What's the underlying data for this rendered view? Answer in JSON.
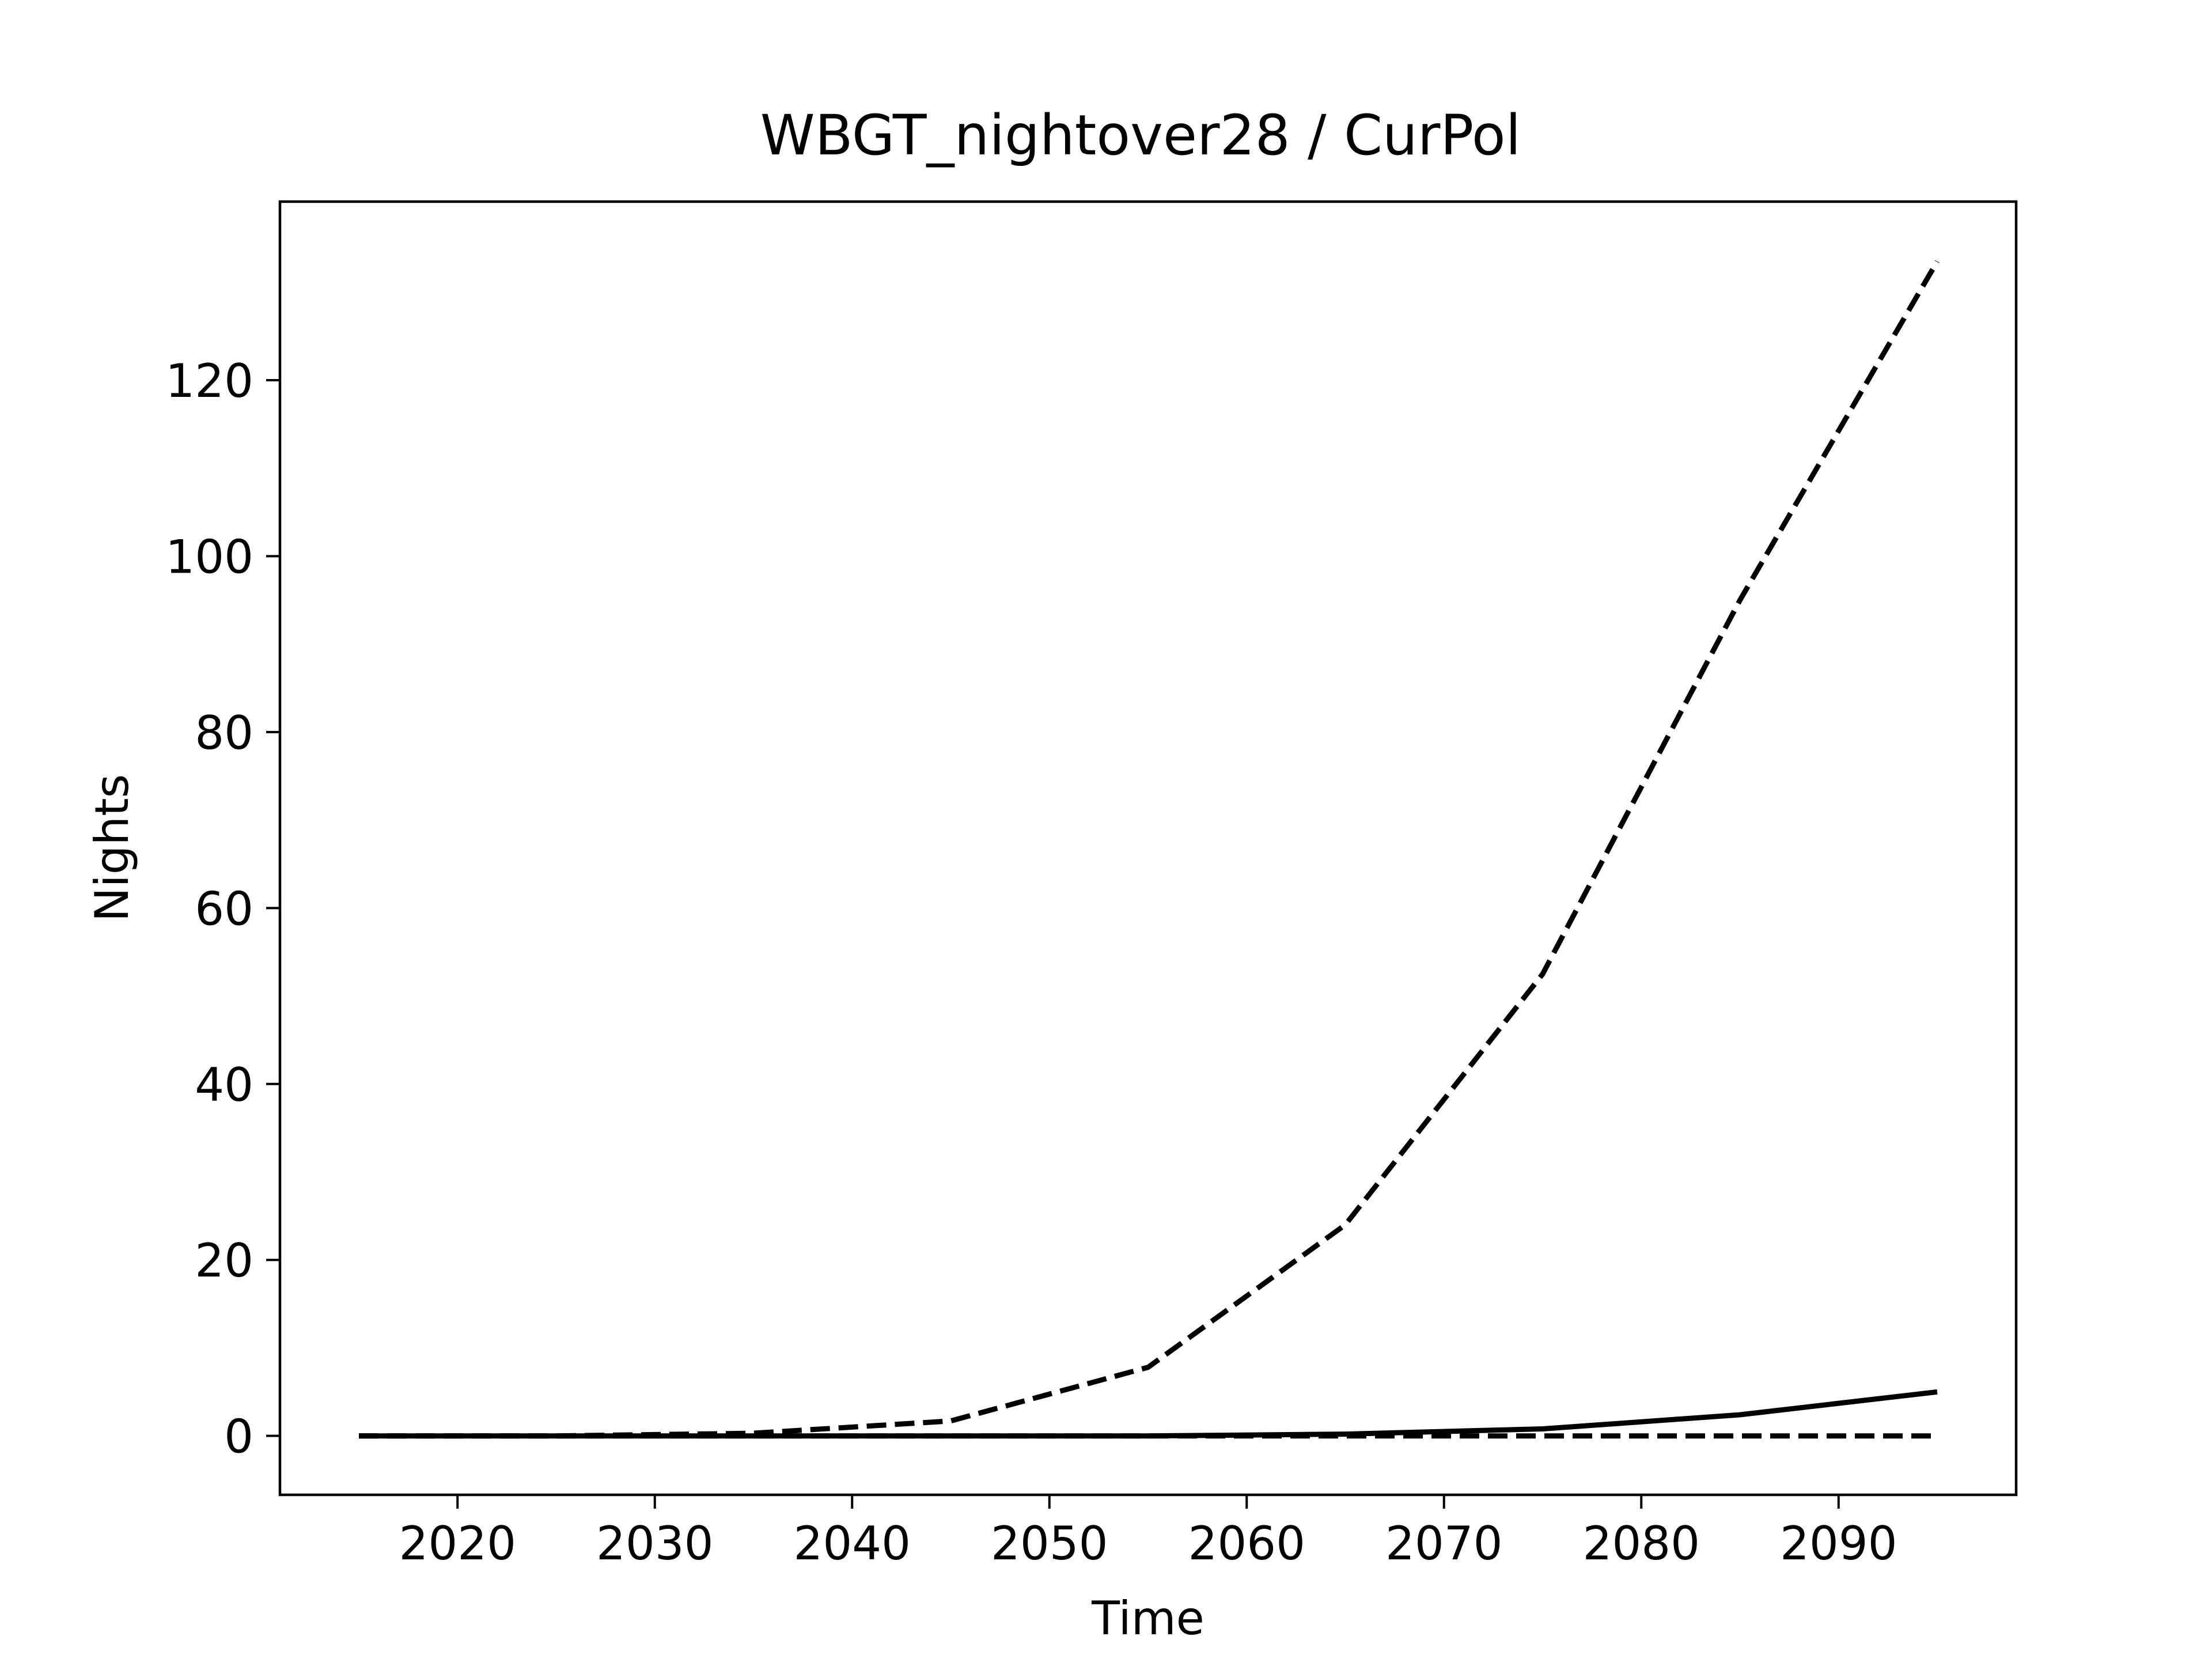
{
  "chart_data": {
    "type": "line",
    "title": "WBGT_nightover28 / CurPol",
    "xlabel": "Time",
    "ylabel": "Nights",
    "xlim": [
      2011,
      2099
    ],
    "ylim": [
      -6.7,
      140.3
    ],
    "x_ticks": [
      2020,
      2030,
      2040,
      2050,
      2060,
      2070,
      2080,
      2090
    ],
    "y_ticks": [
      0,
      20,
      40,
      60,
      80,
      100,
      120
    ],
    "grid": false,
    "legend": "none",
    "x": [
      2015,
      2025,
      2035,
      2045,
      2055,
      2065,
      2075,
      2085,
      2095
    ],
    "series": [
      {
        "style": "dashed",
        "color": "#000000",
        "values": [
          0,
          0,
          0.3,
          1.7,
          7.8,
          24,
          52.5,
          95,
          133.5
        ]
      },
      {
        "style": "solid",
        "color": "#000000",
        "values": [
          0,
          0,
          0,
          0,
          0,
          0.2,
          0.8,
          2.4,
          5
        ]
      },
      {
        "style": "dashed",
        "color": "#000000",
        "values": [
          0,
          0,
          0,
          0,
          0,
          0,
          0,
          0,
          0
        ]
      }
    ]
  }
}
